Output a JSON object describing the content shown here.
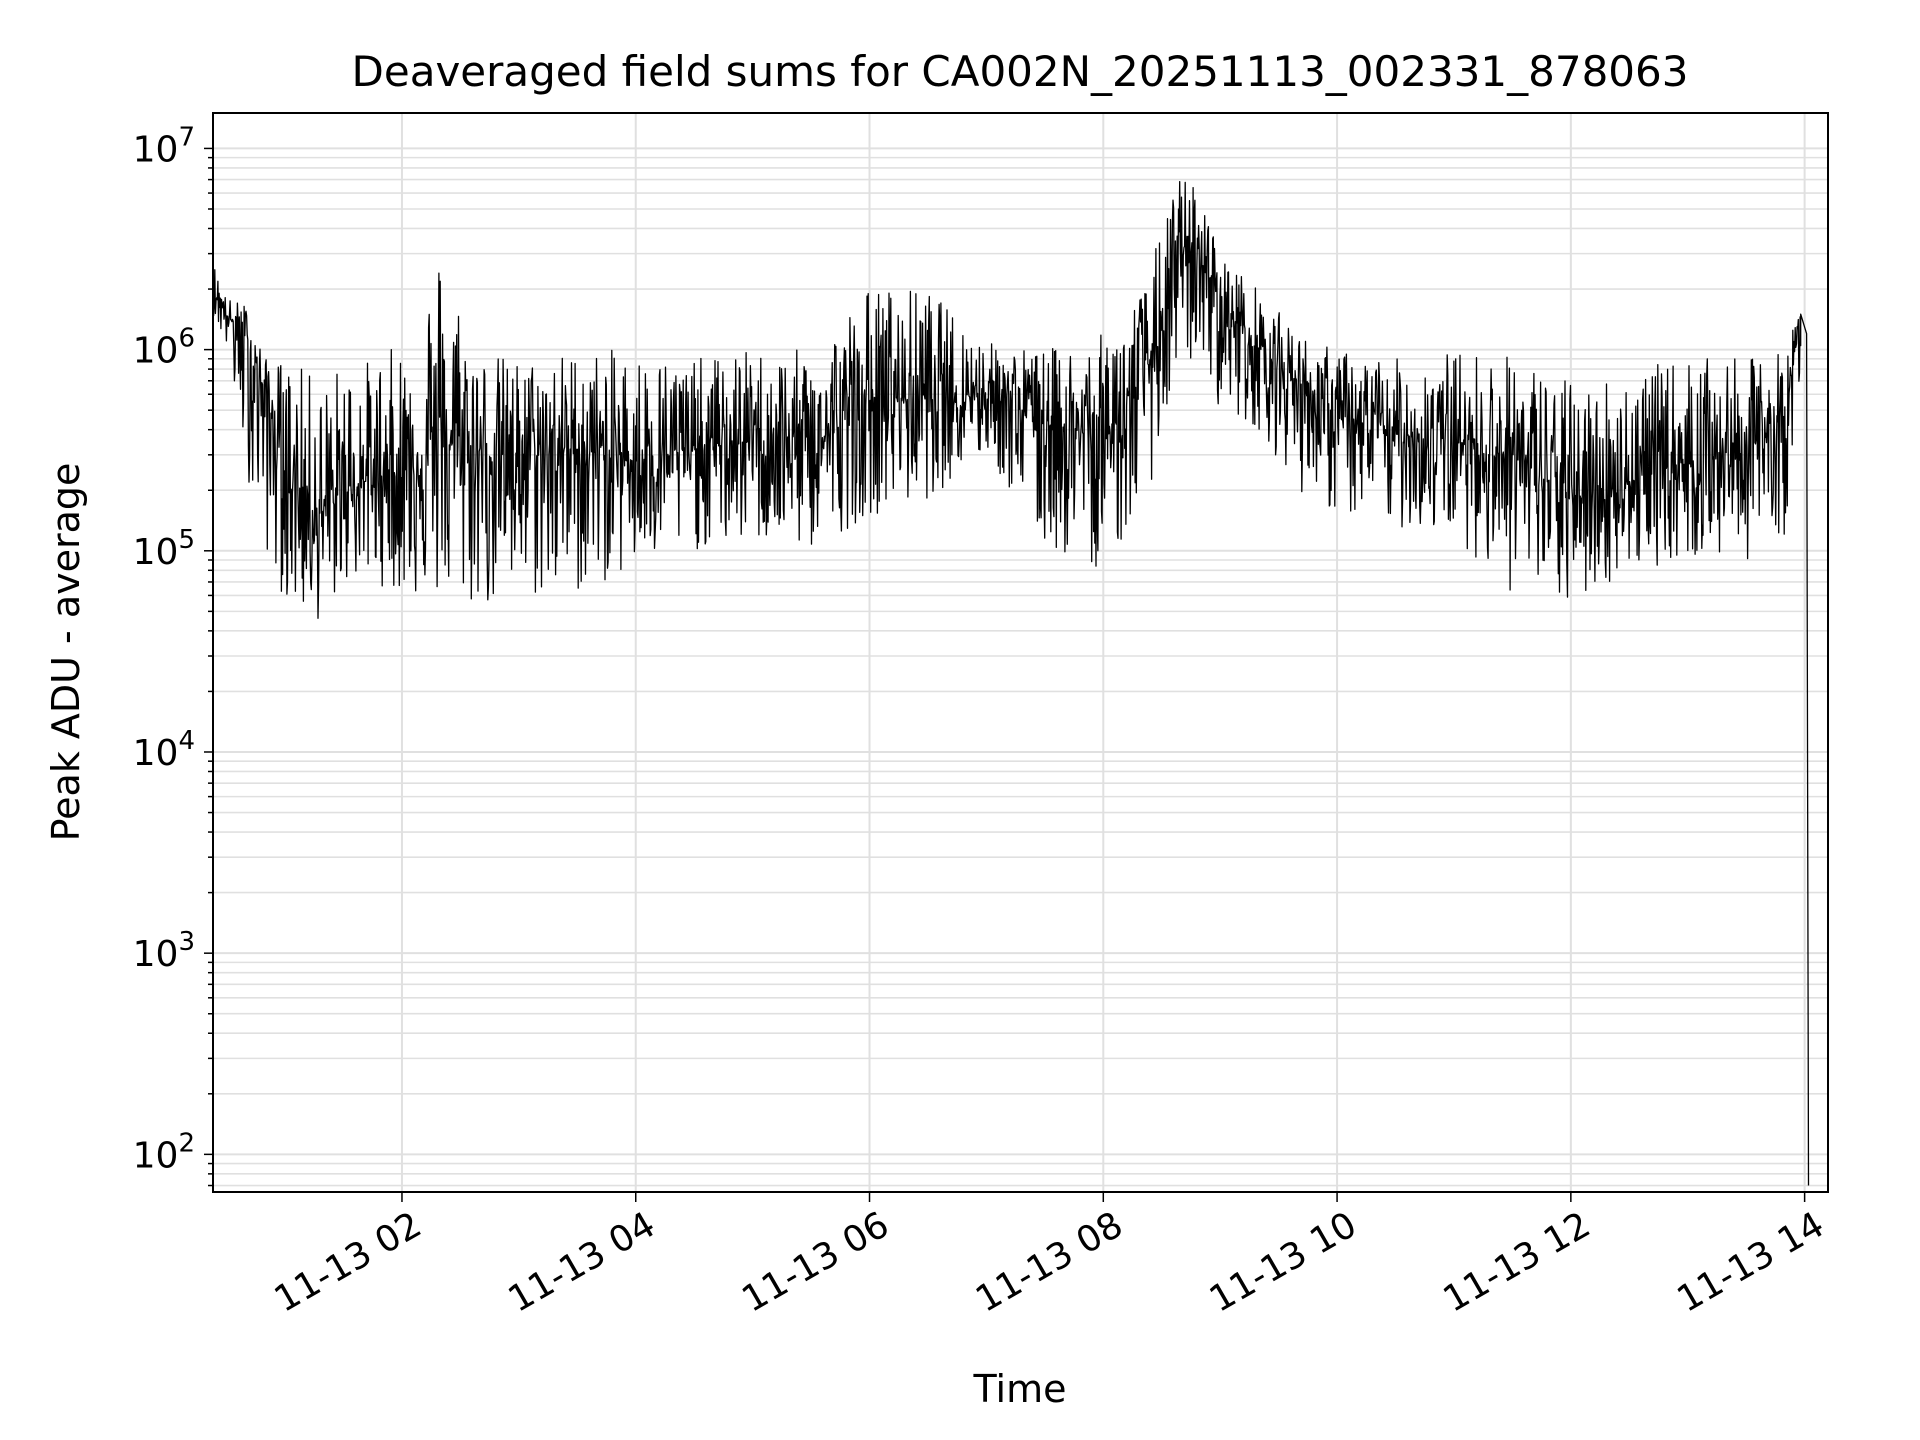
{
  "chart_data": {
    "type": "line",
    "title": "Deaveraged field sums for CA002N_20251113_002331_878063",
    "xlabel": "Time",
    "ylabel": "Peak ADU - average",
    "yscale": "log",
    "xlim": [
      "2025-11-13 00:23",
      "2025-11-13 14:12"
    ],
    "ylim": [
      65,
      15000000
    ],
    "grid": true,
    "grid_which": "both",
    "line_color": "#000000",
    "grid_color": "#e0e0e0",
    "x_ticks": [
      {
        "t": "2025-11-13 02:00",
        "label": "11-13 02"
      },
      {
        "t": "2025-11-13 04:00",
        "label": "11-13 04"
      },
      {
        "t": "2025-11-13 06:00",
        "label": "11-13 06"
      },
      {
        "t": "2025-11-13 08:00",
        "label": "11-13 08"
      },
      {
        "t": "2025-11-13 10:00",
        "label": "11-13 10"
      },
      {
        "t": "2025-11-13 12:00",
        "label": "11-13 12"
      },
      {
        "t": "2025-11-13 14:00",
        "label": "11-13 14"
      }
    ],
    "y_ticks": [
      {
        "value": 100,
        "base": "10",
        "exp": "2"
      },
      {
        "value": 1000,
        "base": "10",
        "exp": "3"
      },
      {
        "value": 10000,
        "base": "10",
        "exp": "4"
      },
      {
        "value": 100000,
        "base": "10",
        "exp": "5"
      },
      {
        "value": 1000000,
        "base": "10",
        "exp": "6"
      },
      {
        "value": 10000000,
        "base": "10",
        "exp": "7"
      }
    ],
    "series": [
      {
        "x": [
          "2025-11-13 00:23",
          "2025-11-13 00:30",
          "2025-11-13 00:40",
          "2025-11-13 00:50",
          "2025-11-13 01:00",
          "2025-11-13 01:10",
          "2025-11-13 01:20",
          "2025-11-13 01:30",
          "2025-11-13 01:45",
          "2025-11-13 02:00",
          "2025-11-13 02:20",
          "2025-11-13 02:40",
          "2025-11-13 03:00",
          "2025-11-13 03:30",
          "2025-11-13 04:00",
          "2025-11-13 04:30",
          "2025-11-13 05:00",
          "2025-11-13 05:30",
          "2025-11-13 06:00",
          "2025-11-13 06:30",
          "2025-11-13 07:00",
          "2025-11-13 07:30",
          "2025-11-13 08:00",
          "2025-11-13 08:20",
          "2025-11-13 08:30",
          "2025-11-13 08:40",
          "2025-11-13 08:50",
          "2025-11-13 09:00",
          "2025-11-13 09:20",
          "2025-11-13 09:40",
          "2025-11-13 10:00",
          "2025-11-13 10:30",
          "2025-11-13 11:00",
          "2025-11-13 11:30",
          "2025-11-13 12:00",
          "2025-11-13 12:30",
          "2025-11-13 13:00",
          "2025-11-13 13:30",
          "2025-11-13 13:50",
          "2025-11-13 13:58",
          "2025-11-13 14:01",
          "2025-11-13 14:02"
        ],
        "y": [
          2000000,
          1500000,
          1100000,
          600000,
          250000,
          180000,
          150000,
          200000,
          230000,
          250000,
          350000,
          300000,
          300000,
          320000,
          280000,
          320000,
          350000,
          320000,
          550000,
          600000,
          620000,
          450000,
          350000,
          700000,
          1300000,
          2500000,
          3000000,
          1700000,
          1000000,
          700000,
          450000,
          380000,
          350000,
          300000,
          180000,
          220000,
          280000,
          320000,
          450000,
          1500000,
          1200000,
          70
        ],
        "y_max": [
          2800000,
          1800000,
          1700000,
          900000,
          900000,
          800000,
          700000,
          900000,
          900000,
          1100000,
          3400000,
          1000000,
          900000,
          1000000,
          1000000,
          900000,
          1000000,
          1000000,
          2100000,
          2000000,
          1100000,
          1000000,
          1200000,
          2000000,
          4000000,
          8000000,
          6000000,
          3000000,
          2000000,
          1200000,
          1000000,
          900000,
          1000000,
          950000,
          700000,
          800000,
          900000,
          900000,
          1000000,
          1700000,
          1500000,
          1000000
        ],
        "y_min": [
          1500000,
          1000000,
          250000,
          100000,
          55000,
          48000,
          43000,
          70000,
          70000,
          60000,
          55000,
          50000,
          55000,
          60000,
          80000,
          100000,
          110000,
          100000,
          150000,
          180000,
          300000,
          100000,
          80000,
          150000,
          350000,
          800000,
          900000,
          500000,
          400000,
          200000,
          150000,
          130000,
          120000,
          60000,
          52000,
          80000,
          90000,
          90000,
          120000,
          800000,
          600000,
          65
        ]
      }
    ]
  }
}
